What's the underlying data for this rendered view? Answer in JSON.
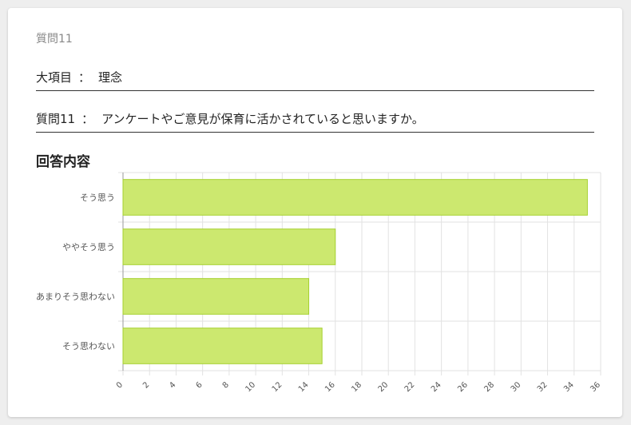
{
  "question_header": "質問11",
  "category": {
    "label": "大項目",
    "separator": "：",
    "value": "理念"
  },
  "question": {
    "label": "質問11",
    "separator": "：",
    "value": "アンケートやご意見が保育に活かされていると思いますか。"
  },
  "section_title": "回答内容",
  "colors": {
    "bar_fill": "#cce86f",
    "bar_stroke": "#a6d12f",
    "grid": "#e2e2e2"
  },
  "chart_data": {
    "type": "bar",
    "orientation": "horizontal",
    "categories": [
      "そう思う",
      "ややそう思う",
      "あまりそう思わない",
      "そう思わない"
    ],
    "values": [
      35,
      16,
      14,
      15
    ],
    "xlim": [
      0,
      36
    ],
    "xticks": [
      0,
      2,
      4,
      6,
      8,
      10,
      12,
      14,
      16,
      18,
      20,
      22,
      24,
      26,
      28,
      30,
      32,
      34,
      36
    ],
    "grid": true
  }
}
